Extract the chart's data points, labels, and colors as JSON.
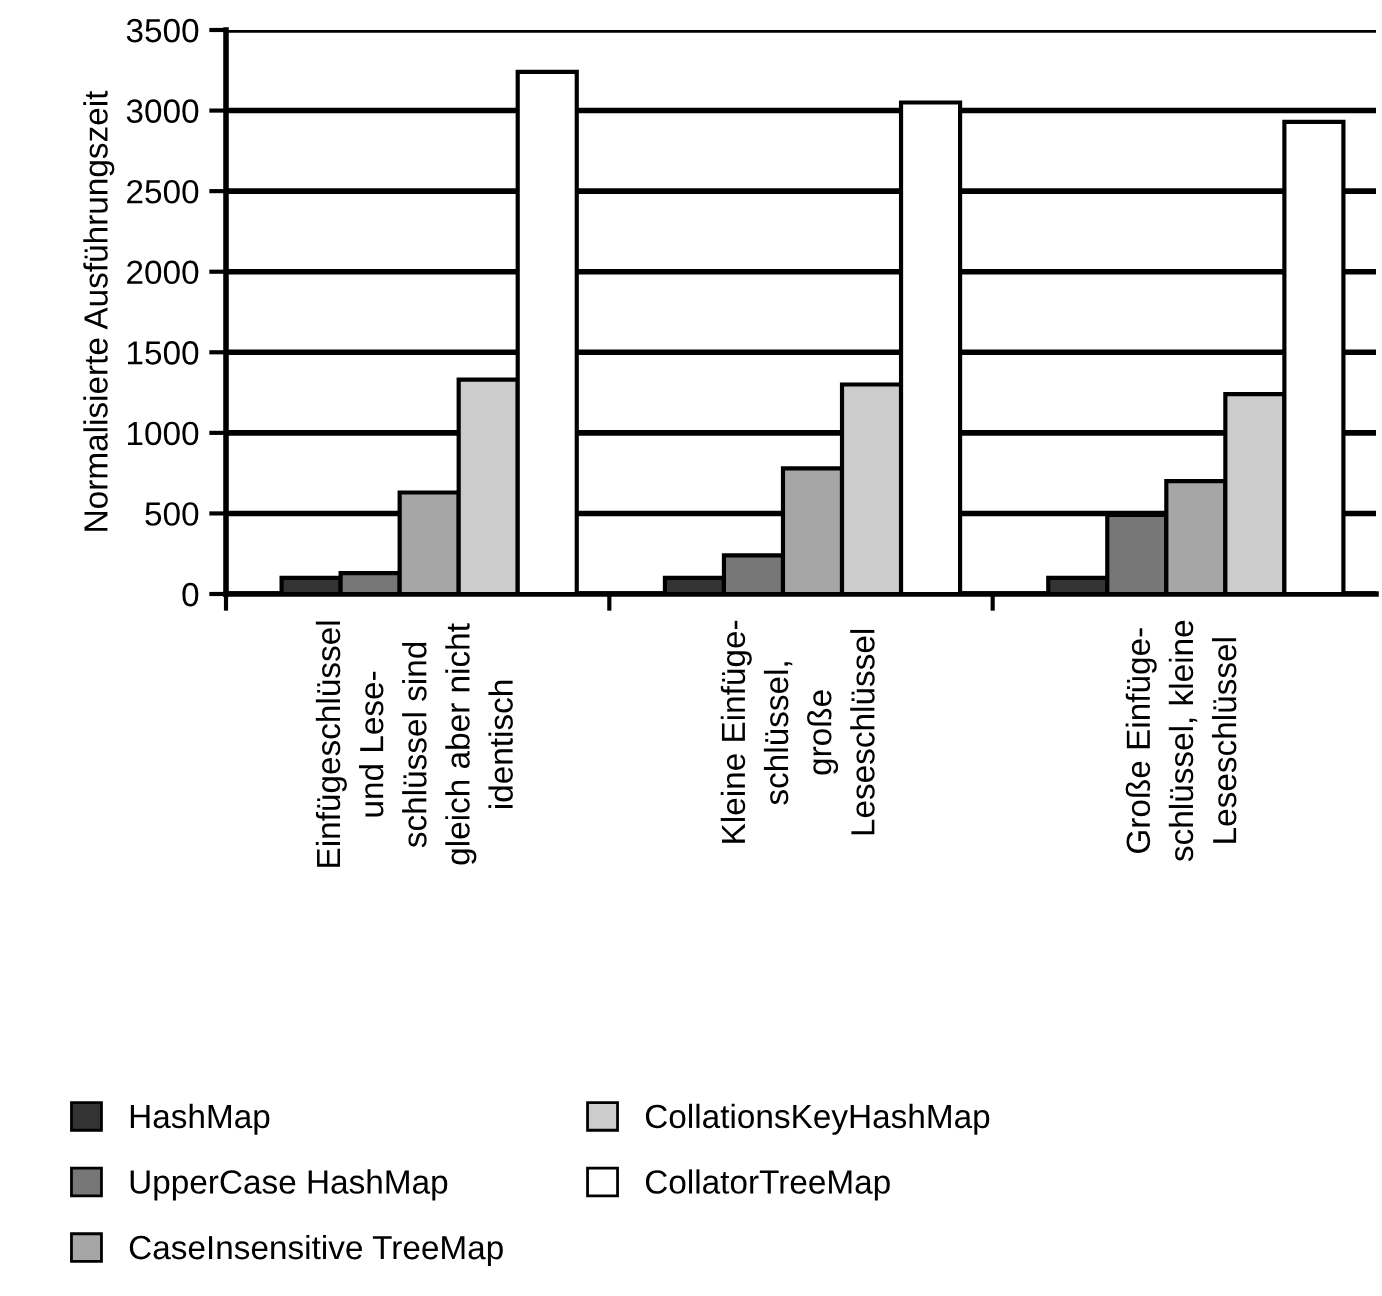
{
  "chart_data": {
    "type": "bar",
    "ylabel": "Normalisierte Ausführungszeit",
    "categories": [
      "Einfügeschlüssel\nund Lese-\nschlüssel sind\ngleich aber nicht\nidentisch",
      "Kleine Einfüge-\nschlüssel,\ngroße\nLeseschlüssel",
      "Große Einfüge-\nschlüssel, kleine\nLeseschlüssel"
    ],
    "series": [
      {
        "name": "HashMap",
        "color": "#333333",
        "values": [
          100,
          100,
          100
        ]
      },
      {
        "name": "UpperCase HashMap",
        "color": "#777777",
        "values": [
          130,
          240,
          490
        ]
      },
      {
        "name": "CaseInsensitive TreeMap",
        "color": "#a6a6a6",
        "values": [
          630,
          780,
          700
        ]
      },
      {
        "name": "CollationsKeyHashMap",
        "color": "#cccccc",
        "values": [
          1330,
          1300,
          1240
        ]
      },
      {
        "name": "CollatorTreeMap",
        "color": "#ffffff",
        "values": [
          3240,
          3050,
          2930
        ]
      }
    ],
    "ylim": [
      0,
      3500
    ],
    "yticks": [
      0,
      500,
      1000,
      1500,
      2000,
      2500,
      3000,
      3500
    ],
    "grid": "y",
    "legend": "bottom"
  }
}
